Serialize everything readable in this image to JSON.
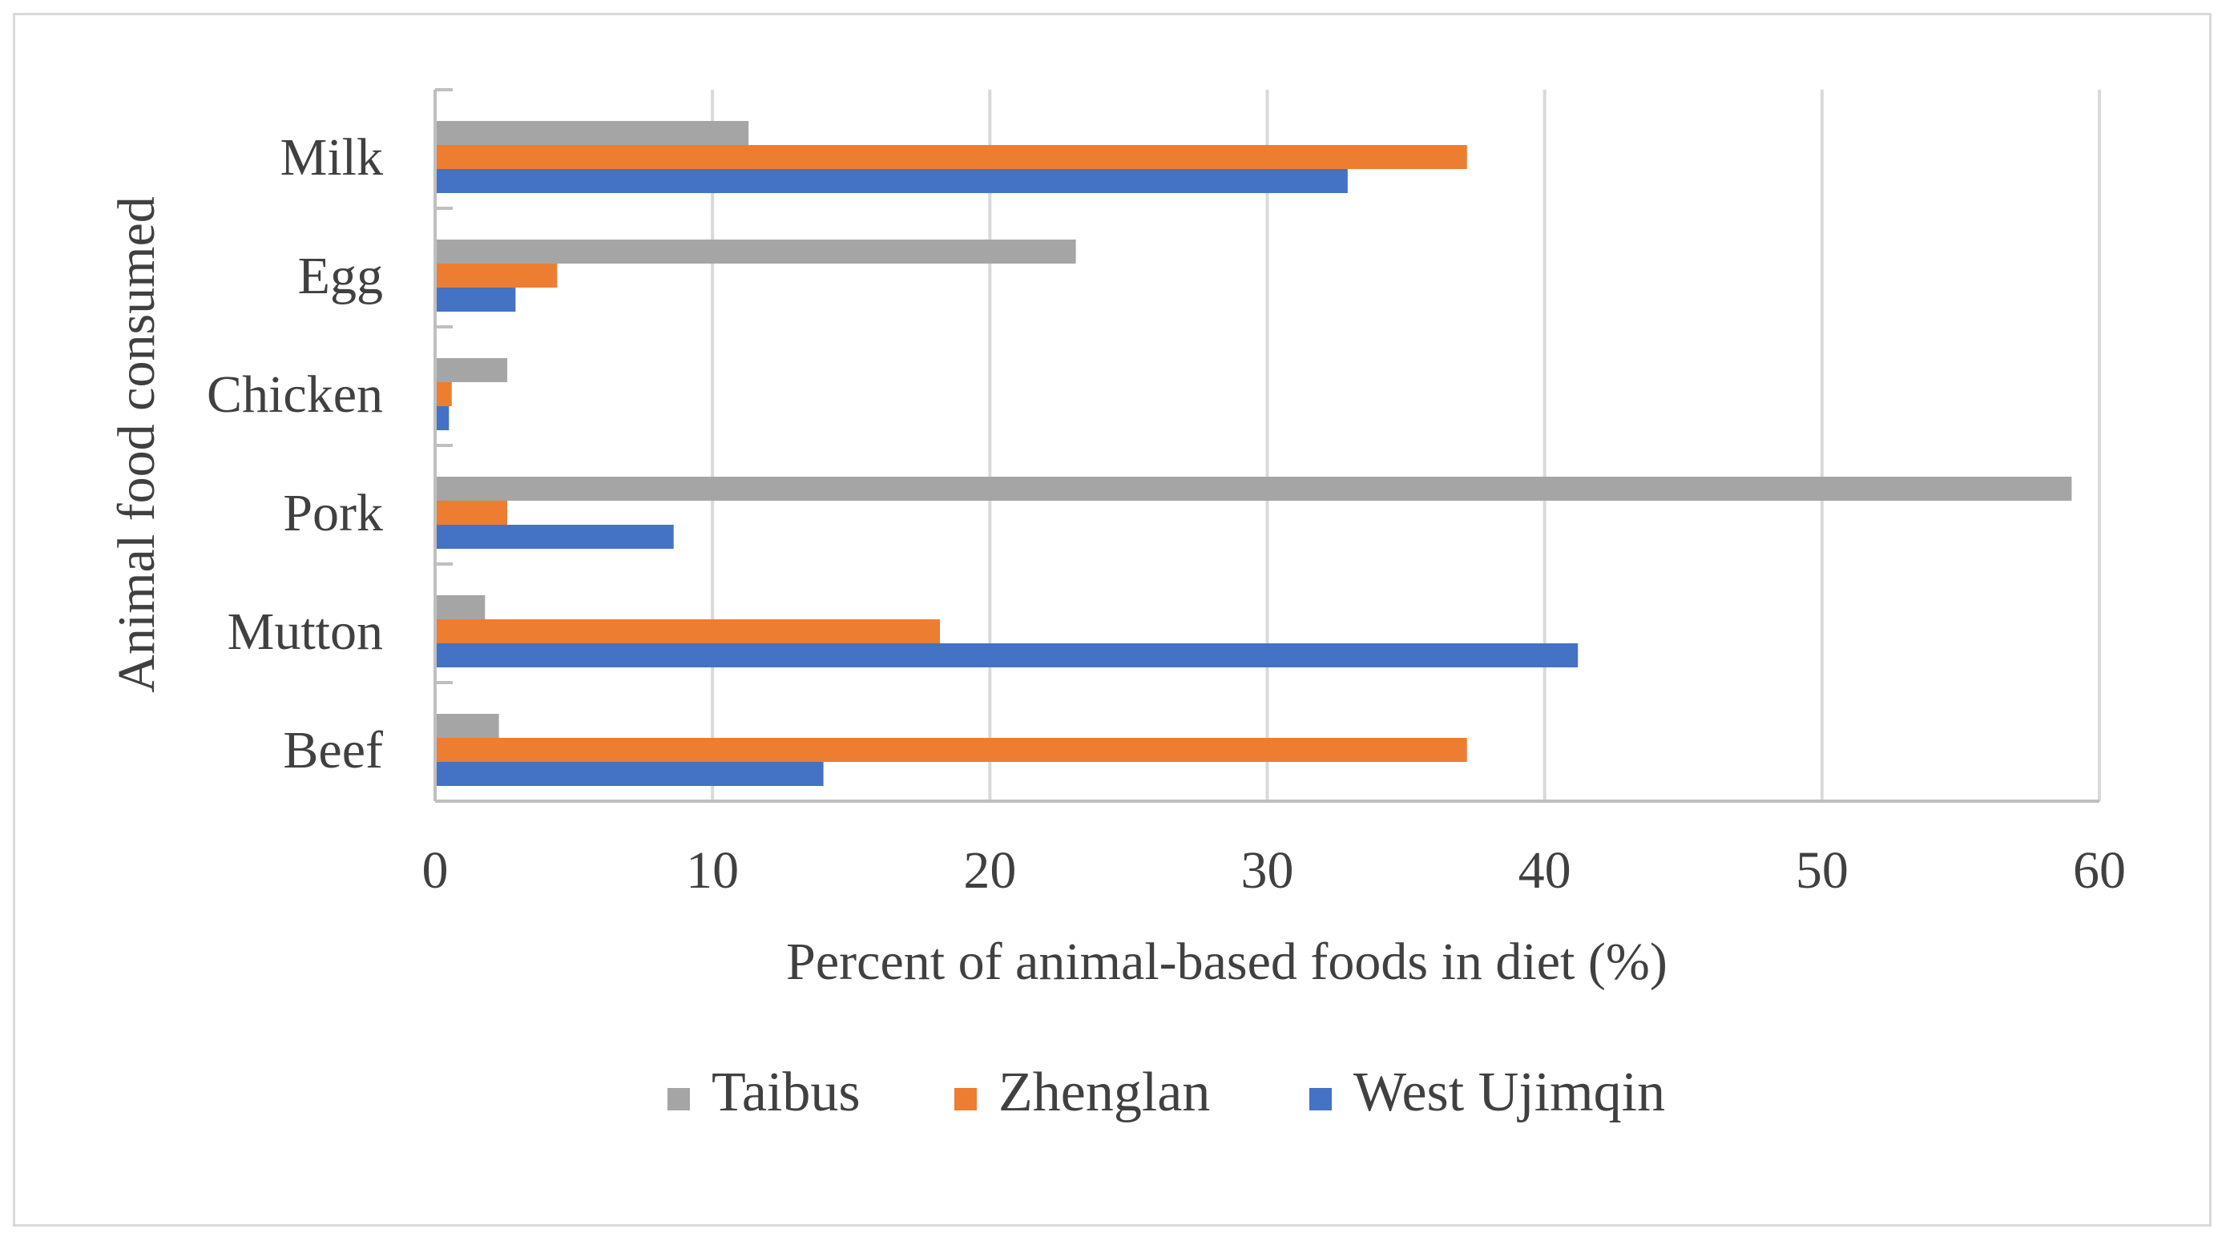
{
  "chart_data": {
    "type": "bar",
    "orientation": "horizontal",
    "title": "",
    "xlabel": "Percent of animal-based foods in diet (%)",
    "ylabel": "Animal food consumed",
    "xlim": [
      0,
      60
    ],
    "x_ticks": [
      "0",
      "10",
      "20",
      "30",
      "40",
      "50",
      "60"
    ],
    "categories": [
      "Milk",
      "Egg",
      "Chicken",
      "Pork",
      "Mutton",
      "Beef"
    ],
    "series": [
      {
        "name": "Taibus",
        "color": "#a5a5a5",
        "values": [
          11.3,
          23.1,
          2.6,
          59.0,
          1.8,
          2.3
        ]
      },
      {
        "name": "Zhenglan",
        "color": "#ed7d31",
        "values": [
          37.2,
          4.4,
          0.6,
          2.6,
          18.2,
          37.2
        ]
      },
      {
        "name": "West Ujimqin",
        "color": "#4472c4",
        "values": [
          32.9,
          2.9,
          0.5,
          8.6,
          41.2,
          14.0
        ]
      }
    ],
    "grid": "vertical",
    "legend_position": "bottom"
  }
}
